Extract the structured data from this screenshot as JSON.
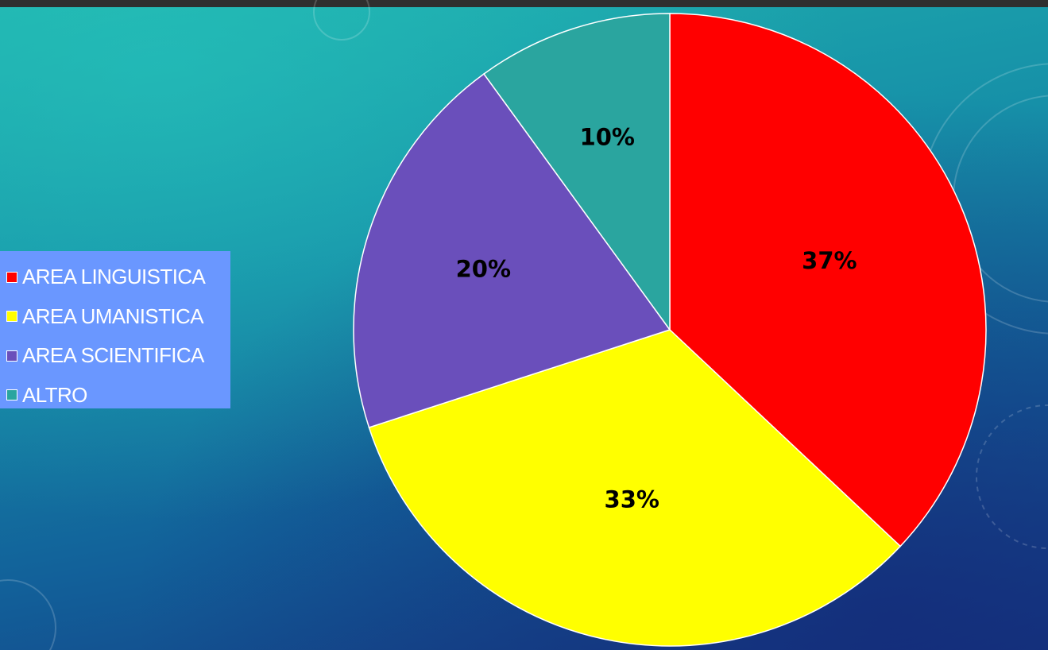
{
  "chart_data": {
    "type": "pie",
    "categories": [
      "AREA LINGUISTICA",
      "AREA UMANISTICA",
      "AREA SCIENTIFICA",
      "ALTRO"
    ],
    "values": [
      37,
      33,
      20,
      10
    ],
    "data_labels": [
      "37%",
      "33%",
      "20%",
      "10%"
    ],
    "colors": [
      "#ff0000",
      "#ffff00",
      "#6a4fbb",
      "#2aa59f"
    ],
    "start_angle_deg": 0,
    "direction": "clockwise",
    "legend_position": "left",
    "slice_border_color": "#ffffff"
  },
  "legend": {
    "items": [
      {
        "label": "AREA LINGUISTICA",
        "color": "#ff0000"
      },
      {
        "label": "AREA UMANISTICA",
        "color": "#ffff00"
      },
      {
        "label": "AREA SCIENTIFICA",
        "color": "#6a4fbb"
      },
      {
        "label": "ALTRO",
        "color": "#2aa59f"
      }
    ],
    "background": "#6a97ff"
  }
}
